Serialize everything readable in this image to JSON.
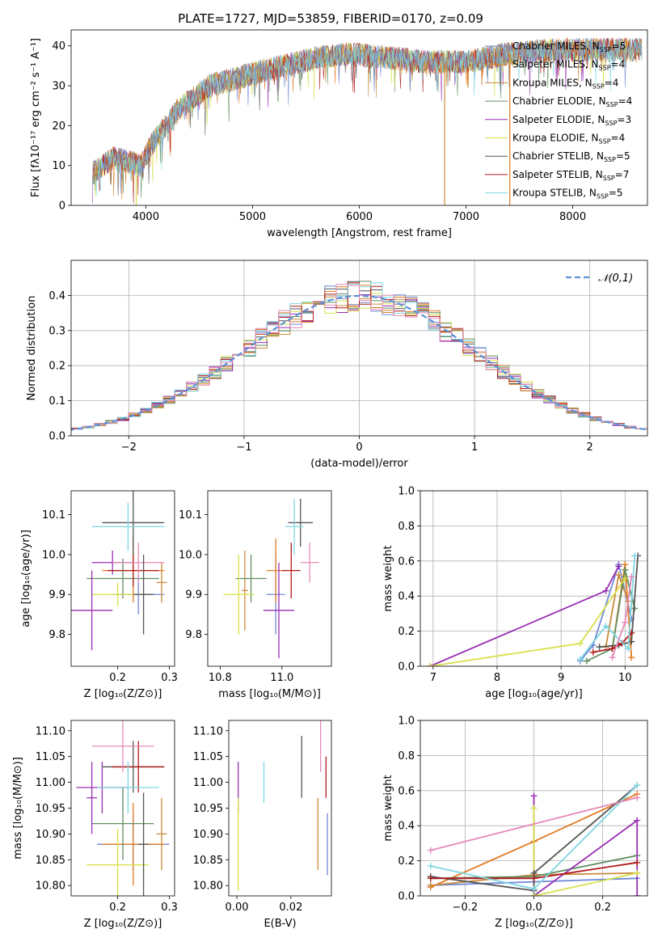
{
  "colors": [
    "#7089d6",
    "#e07a22",
    "#c98a3a",
    "#5f8d5f",
    "#9a2fb4",
    "#d8e04a",
    "#555555",
    "#b01b1b",
    "#7fd6e2",
    "#e58ab8"
  ],
  "chart_data": [
    {
      "id": "spectrum",
      "type": "line",
      "title": "PLATE=1727, MJD=53859, FIBERID=0170, z=0.09",
      "xlabel": "wavelength [Angstrom, rest frame]",
      "ylabel": "Flux [fλ10⁻¹⁷ erg cm⁻² s⁻¹ A⁻¹]",
      "xlim": [
        3300,
        8700
      ],
      "ylim": [
        0,
        44
      ],
      "xticks": [
        4000,
        5000,
        6000,
        7000,
        8000
      ],
      "yticks": [
        0,
        10,
        20,
        30,
        40
      ],
      "legend": "upper right",
      "continuum_x": [
        3500,
        3700,
        3950,
        4050,
        4300,
        4600,
        5000,
        5300,
        5600,
        5900,
        6300,
        6600,
        7000,
        7400,
        7800,
        8200,
        8600
      ],
      "continuum_y": [
        8,
        12,
        10,
        15,
        24,
        30,
        33,
        35,
        37,
        38,
        37,
        36,
        36,
        38,
        39,
        39,
        39
      ],
      "series": [
        {
          "name": "Chabrier MILES, N_SSP=5"
        },
        {
          "name": "Salpeter MILES, N_SSP=4"
        },
        {
          "name": "Kroupa MILES, N_SSP=4"
        },
        {
          "name": "Chabrier ELODIE, N_SSP=4"
        },
        {
          "name": "Salpeter ELODIE, N_SSP=3"
        },
        {
          "name": "Kroupa ELODIE, N_SSP=4"
        },
        {
          "name": "Chabrier STELIB, N_SSP=5"
        },
        {
          "name": "Salpeter STELIB, N_SSP=7"
        },
        {
          "name": "Kroupa STELIB, N_SSP=5"
        }
      ],
      "legend_entries": [
        {
          "pre": "Chabrier MILES, N",
          "sub": "SSP",
          "post": "=5"
        },
        {
          "pre": "Salpeter MILES, N",
          "sub": "SSP",
          "post": "=4"
        },
        {
          "pre": "Kroupa MILES, N",
          "sub": "SSP",
          "post": "=4"
        },
        {
          "pre": "Chabrier ELODIE, N",
          "sub": "SSP",
          "post": "=4"
        },
        {
          "pre": "Salpeter ELODIE, N",
          "sub": "SSP",
          "post": "=3"
        },
        {
          "pre": "Kroupa ELODIE, N",
          "sub": "SSP",
          "post": "=4"
        },
        {
          "pre": "Chabrier STELIB, N",
          "sub": "SSP",
          "post": "=5"
        },
        {
          "pre": "Salpeter STELIB, N",
          "sub": "SSP",
          "post": "=7"
        },
        {
          "pre": "Kroupa STELIB, N",
          "sub": "SSP",
          "post": "=5"
        }
      ],
      "vertical_drops": [
        {
          "x": 3910,
          "series": 5
        },
        {
          "x": 6800,
          "series": 2
        },
        {
          "x": 7410,
          "series": 1
        }
      ]
    },
    {
      "id": "residuals",
      "type": "histogram",
      "xlabel": "(data-model)/error",
      "ylabel": "Normed distribution",
      "xlim": [
        -2.5,
        2.5
      ],
      "ylim": [
        0,
        0.5
      ],
      "xticks": [
        -2,
        -1,
        0,
        1,
        2
      ],
      "yticks": [
        0.0,
        0.1,
        0.2,
        0.3,
        0.4
      ],
      "grid": true,
      "bin_width": 0.1,
      "reference_curve": {
        "name": "𝒩(0,1)",
        "type": "gaussian",
        "mean": 0,
        "sigma": 1
      }
    },
    {
      "id": "age_vs_Z",
      "type": "errorbar",
      "xlabel": "Z [log₁₀(Z/Z⊙)]",
      "ylabel": "age  [log₁₀(age/yr)]",
      "xlim": [
        0.11,
        0.31
      ],
      "ylim": [
        9.72,
        10.16
      ],
      "xticks": [
        0.2,
        0.3
      ],
      "yticks": [
        9.8,
        9.9,
        10.0,
        10.1
      ],
      "points": [
        {
          "x": 0.24,
          "xerr": 0.05,
          "y": 9.9,
          "yerr": 0.05,
          "series": 0
        },
        {
          "x": 0.23,
          "xerr": 0.06,
          "y": 9.96,
          "yerr": 0.08,
          "series": 1
        },
        {
          "x": 0.285,
          "xerr": 0.01,
          "y": 9.93,
          "yerr": 0.05,
          "series": 2
        },
        {
          "x": 0.21,
          "xerr": 0.07,
          "y": 9.94,
          "yerr": 0.05,
          "series": 3
        },
        {
          "x": 0.19,
          "xerr": 0.04,
          "y": 9.98,
          "yerr": 0.03,
          "series": 4
        },
        {
          "x": 0.2,
          "xerr": 0.05,
          "y": 9.9,
          "yerr": 0.03,
          "series": 5
        },
        {
          "x": 0.23,
          "xerr": 0.06,
          "y": 10.08,
          "yerr": 0.08,
          "series": 6
        },
        {
          "x": 0.23,
          "xerr": 0.05,
          "y": 9.96,
          "yerr": 0.04,
          "series": 7
        },
        {
          "x": 0.22,
          "xerr": 0.07,
          "y": 10.07,
          "yerr": 0.06,
          "series": 8
        },
        {
          "x": 0.24,
          "xerr": 0.05,
          "y": 9.98,
          "yerr": 0.05,
          "series": 9
        },
        {
          "x": 0.15,
          "xerr": 0.04,
          "y": 9.86,
          "yerr": 0.1,
          "series": 4
        },
        {
          "x": 0.25,
          "xerr": 0.02,
          "y": 9.9,
          "yerr": 0.1,
          "series": 6
        }
      ]
    },
    {
      "id": "age_vs_mass",
      "type": "errorbar",
      "xlabel": "mass [log₁₀(M/M⊙)]",
      "ylabel": "",
      "xlim": [
        10.76,
        11.16
      ],
      "ylim": [
        9.72,
        10.16
      ],
      "xticks": [
        10.8,
        11.0
      ],
      "yticks": [
        9.8,
        9.9,
        10.0,
        10.1
      ],
      "points": [
        {
          "x": 10.98,
          "xerr": 0.03,
          "y": 9.9,
          "yerr": 0.1,
          "series": 0
        },
        {
          "x": 10.98,
          "xerr": 0.03,
          "y": 9.96,
          "yerr": 0.08,
          "series": 1
        },
        {
          "x": 10.88,
          "xerr": 0.01,
          "y": 9.91,
          "yerr": 0.1,
          "series": 2
        },
        {
          "x": 10.9,
          "xerr": 0.05,
          "y": 9.94,
          "yerr": 0.06,
          "series": 3
        },
        {
          "x": 10.99,
          "xerr": 0.05,
          "y": 9.86,
          "yerr": 0.12,
          "series": 4
        },
        {
          "x": 10.86,
          "xerr": 0.05,
          "y": 9.9,
          "yerr": 0.1,
          "series": 5
        },
        {
          "x": 11.06,
          "xerr": 0.04,
          "y": 10.08,
          "yerr": 0.06,
          "series": 6
        },
        {
          "x": 11.03,
          "xerr": 0.03,
          "y": 9.96,
          "yerr": 0.07,
          "series": 7
        },
        {
          "x": 11.04,
          "xerr": 0.03,
          "y": 10.07,
          "yerr": 0.07,
          "series": 8
        },
        {
          "x": 11.09,
          "xerr": 0.03,
          "y": 9.98,
          "yerr": 0.05,
          "series": 9
        }
      ]
    },
    {
      "id": "weight_vs_age",
      "type": "line",
      "xlabel": "age  [log₁₀(age/yr)]",
      "ylabel": "mass weight",
      "xlim": [
        6.8,
        10.35
      ],
      "ylim": [
        0.0,
        1.0
      ],
      "xticks": [
        7,
        8,
        9,
        10
      ],
      "yticks": [
        0.0,
        0.2,
        0.4,
        0.6,
        0.8,
        1.0
      ],
      "grid": true,
      "series": [
        {
          "x": [
            9.3,
            9.5,
            9.9,
            10.1
          ],
          "y": [
            0.03,
            0.12,
            0.58,
            0.27
          ],
          "color": 0
        },
        {
          "x": [
            9.8,
            10.0,
            10.1
          ],
          "y": [
            0.1,
            0.58,
            0.05
          ],
          "color": 1
        },
        {
          "x": [
            9.7,
            9.9,
            10.05
          ],
          "y": [
            0.11,
            0.52,
            0.37
          ],
          "color": 2
        },
        {
          "x": [
            9.4,
            9.8,
            10.0,
            10.15
          ],
          "y": [
            0.03,
            0.1,
            0.55,
            0.33
          ],
          "color": 3
        },
        {
          "x": [
            6.95,
            9.7,
            9.9
          ],
          "y": [
            0.0,
            0.43,
            0.57
          ],
          "color": 4
        },
        {
          "x": [
            6.95,
            9.3,
            10.0
          ],
          "y": [
            0.0,
            0.13,
            0.5
          ],
          "color": 5
        },
        {
          "x": [
            9.6,
            9.9,
            10.1,
            10.2
          ],
          "y": [
            0.11,
            0.12,
            0.14,
            0.63
          ],
          "color": 6
        },
        {
          "x": [
            9.5,
            9.8,
            9.95,
            10.1
          ],
          "y": [
            0.08,
            0.1,
            0.13,
            0.19
          ],
          "color": 7
        },
        {
          "x": [
            9.3,
            9.7,
            10.05,
            10.15
          ],
          "y": [
            0.04,
            0.23,
            0.1,
            0.63
          ],
          "color": 8
        },
        {
          "x": [
            9.8,
            10.0,
            10.1
          ],
          "y": [
            0.05,
            0.25,
            0.51
          ],
          "color": 9
        }
      ]
    },
    {
      "id": "mass_vs_Z",
      "type": "errorbar",
      "xlabel": "Z [log₁₀(Z/Z⊙)]",
      "ylabel": "mass [log₁₀(M/M⊙)]",
      "xlim": [
        0.11,
        0.31
      ],
      "ylim": [
        10.78,
        11.12
      ],
      "xticks": [
        0.2,
        0.3
      ],
      "yticks": [
        10.8,
        10.85,
        10.9,
        10.95,
        11.0,
        11.05,
        11.1
      ],
      "points": [
        {
          "x": 0.23,
          "xerr": 0.07,
          "y": 10.88,
          "yerr": 0.05,
          "series": 0
        },
        {
          "x": 0.23,
          "xerr": 0.06,
          "y": 10.88,
          "yerr": 0.08,
          "series": 1
        },
        {
          "x": 0.285,
          "xerr": 0.01,
          "y": 10.9,
          "yerr": 0.07,
          "series": 2
        },
        {
          "x": 0.21,
          "xerr": 0.06,
          "y": 10.92,
          "yerr": 0.07,
          "series": 3
        },
        {
          "x": 0.17,
          "xerr": 0.05,
          "y": 10.99,
          "yerr": 0.05,
          "series": 4
        },
        {
          "x": 0.2,
          "xerr": 0.06,
          "y": 10.84,
          "yerr": 0.07,
          "series": 5
        },
        {
          "x": 0.23,
          "xerr": 0.06,
          "y": 11.03,
          "yerr": 0.05,
          "series": 6
        },
        {
          "x": 0.24,
          "xerr": 0.05,
          "y": 11.03,
          "yerr": 0.05,
          "series": 7
        },
        {
          "x": 0.22,
          "xerr": 0.06,
          "y": 10.99,
          "yerr": 0.05,
          "series": 8
        },
        {
          "x": 0.21,
          "xerr": 0.06,
          "y": 11.07,
          "yerr": 0.05,
          "series": 9
        },
        {
          "x": 0.15,
          "xerr": 0.01,
          "y": 10.97,
          "yerr": 0.07,
          "series": 4
        },
        {
          "x": 0.25,
          "xerr": 0.01,
          "y": 10.88,
          "yerr": 0.1,
          "series": 6
        }
      ]
    },
    {
      "id": "mass_vs_ebv",
      "type": "errorbar",
      "xlabel": "E(B-V)",
      "ylabel": "",
      "xlim": [
        -0.003,
        0.035
      ],
      "ylim": [
        10.78,
        11.12
      ],
      "xticks": [
        0.0,
        0.02
      ],
      "yticks": [
        10.8,
        10.85,
        10.9,
        10.95,
        11.0,
        11.05,
        11.1
      ],
      "points": [
        {
          "x": 0.0005,
          "y": 10.99,
          "yerr": 0.05,
          "series": 4
        },
        {
          "x": 0.0005,
          "y": 10.88,
          "yerr": 0.09,
          "series": 5
        },
        {
          "x": 0.01,
          "y": 11.0,
          "yerr": 0.04,
          "series": 8
        },
        {
          "x": 0.024,
          "y": 11.03,
          "yerr": 0.06,
          "series": 6
        },
        {
          "x": 0.03,
          "y": 10.9,
          "yerr": 0.07,
          "series": 2
        },
        {
          "x": 0.031,
          "y": 11.07,
          "yerr": 0.05,
          "series": 9
        },
        {
          "x": 0.033,
          "y": 11.01,
          "yerr": 0.04,
          "series": 7
        },
        {
          "x": 0.0335,
          "y": 10.88,
          "yerr": 0.06,
          "series": 0
        }
      ]
    },
    {
      "id": "weight_vs_Z",
      "type": "line",
      "xlabel": "Z [log₁₀(Z/Z⊙)]",
      "ylabel": "mass weight",
      "xlim": [
        -0.33,
        0.33
      ],
      "ylim": [
        0.0,
        1.0
      ],
      "xticks": [
        -0.2,
        0.0,
        0.2
      ],
      "yticks": [
        0.0,
        0.2,
        0.4,
        0.6,
        0.8,
        1.0
      ],
      "grid": true,
      "series": [
        {
          "x": [
            -0.3,
            0.0,
            0.3
          ],
          "y": [
            0.06,
            0.08,
            0.1
          ],
          "color": 0
        },
        {
          "x": [
            -0.3,
            0.0,
            0.3
          ],
          "y": [
            0.05,
            0.31,
            0.58
          ],
          "color": 1
        },
        {
          "x": [
            -0.3,
            0.0,
            0.3
          ],
          "y": [
            0.06,
            0.12,
            0.13
          ],
          "color": 2
        },
        {
          "x": [
            -0.3,
            0.0,
            0.3
          ],
          "y": [
            0.1,
            0.11,
            0.23
          ],
          "color": 3
        },
        {
          "x": [
            0.0,
            0.0,
            0.3,
            0.3
          ],
          "y": [
            0.57,
            0.0,
            0.43,
            0.0
          ],
          "color": 4
        },
        {
          "x": [
            0.0,
            0.0,
            0.3
          ],
          "y": [
            0.5,
            0.0,
            0.13
          ],
          "color": 5
        },
        {
          "x": [
            -0.3,
            0.0,
            0.0,
            0.3
          ],
          "y": [
            0.11,
            0.03,
            0.13,
            0.63
          ],
          "color": 6
        },
        {
          "x": [
            -0.3,
            0.0,
            0.3
          ],
          "y": [
            0.1,
            0.1,
            0.19
          ],
          "color": 7
        },
        {
          "x": [
            -0.3,
            0.0,
            0.3
          ],
          "y": [
            0.17,
            0.04,
            0.63
          ],
          "color": 8
        },
        {
          "x": [
            -0.3,
            0.3
          ],
          "y": [
            0.26,
            0.56
          ],
          "color": 9
        }
      ]
    }
  ]
}
